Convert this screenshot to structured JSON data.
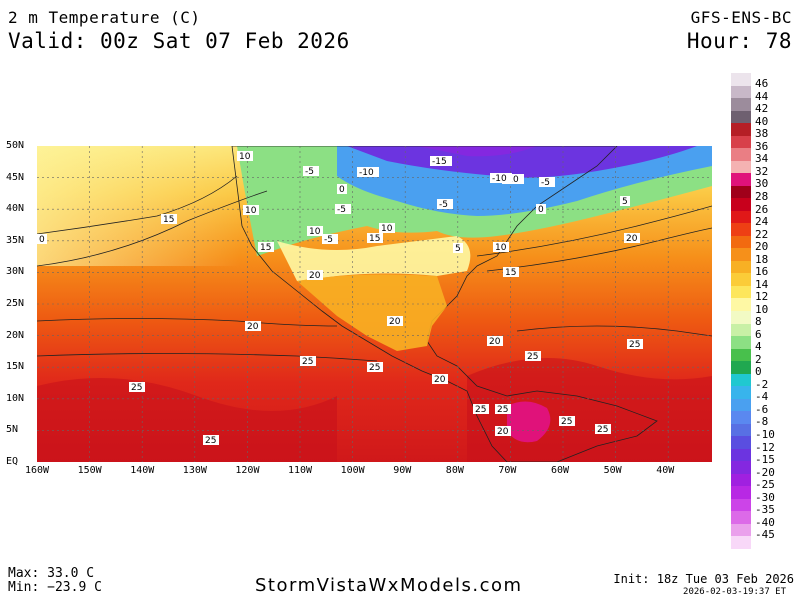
{
  "header": {
    "title": "2 m Temperature (C)",
    "valid": "Valid: 00z Sat 07 Feb 2026",
    "model": "GFS-ENS-BC",
    "hour": "Hour: 78"
  },
  "axes": {
    "lat_labels": [
      "50N",
      "45N",
      "40N",
      "35N",
      "30N",
      "25N",
      "20N",
      "15N",
      "10N",
      "5N",
      "EQ"
    ],
    "lon_labels": [
      "160W",
      "150W",
      "140W",
      "130W",
      "120W",
      "110W",
      "100W",
      "90W",
      "80W",
      "70W",
      "60W",
      "50W",
      "40W"
    ]
  },
  "colorbar": {
    "levels": [
      "46",
      "44",
      "42",
      "40",
      "38",
      "36",
      "34",
      "32",
      "30",
      "28",
      "26",
      "24",
      "22",
      "20",
      "18",
      "16",
      "14",
      "12",
      "10",
      "8",
      "6",
      "4",
      "2",
      "0",
      "-2",
      "-4",
      "-6",
      "-8",
      "-10",
      "-12",
      "-15",
      "-20",
      "-25",
      "-30",
      "-35",
      "-40",
      "-45"
    ],
    "colors": [
      "#ece4ec",
      "#c8b8c8",
      "#9c8c9c",
      "#6e6070",
      "#b51f26",
      "#d8404a",
      "#ea7e84",
      "#f4b2b2",
      "#e0127a",
      "#a0001a",
      "#c8001c",
      "#e01818",
      "#ee3f14",
      "#f26a10",
      "#f6901a",
      "#f8b024",
      "#fbcc38",
      "#fde65c",
      "#fef8a4",
      "#f2fac4",
      "#c8f0a6",
      "#8ce084",
      "#48c04c",
      "#20a850",
      "#20c8d0",
      "#38b4ec",
      "#4aa0f0",
      "#5a88f0",
      "#5870e4",
      "#5a4ee0",
      "#6c34e0",
      "#8428e0",
      "#a020e0",
      "#b828e4",
      "#cc44e8",
      "#dc6ae8",
      "#eaa0ec",
      "#f8d8f8"
    ]
  },
  "contour_labels": [
    {
      "text": "-15"
    },
    {
      "text": "-10"
    },
    {
      "text": "-10"
    },
    {
      "text": "-5"
    },
    {
      "text": "-5"
    },
    {
      "text": "-5"
    },
    {
      "text": "0"
    },
    {
      "text": "0"
    },
    {
      "text": "0"
    },
    {
      "text": "5"
    },
    {
      "text": "5"
    },
    {
      "text": "5"
    },
    {
      "text": "-5"
    },
    {
      "text": "-5"
    },
    {
      "text": "10"
    },
    {
      "text": "10"
    },
    {
      "text": "10"
    },
    {
      "text": "10"
    },
    {
      "text": "10"
    },
    {
      "text": "15"
    },
    {
      "text": "15"
    },
    {
      "text": "15"
    },
    {
      "text": "15"
    },
    {
      "text": "20"
    },
    {
      "text": "20"
    },
    {
      "text": "20"
    },
    {
      "text": "20"
    },
    {
      "text": "20"
    },
    {
      "text": "20"
    },
    {
      "text": "20"
    },
    {
      "text": "25"
    },
    {
      "text": "25"
    },
    {
      "text": "25"
    },
    {
      "text": "25"
    },
    {
      "text": "25"
    },
    {
      "text": "25"
    },
    {
      "text": "25"
    },
    {
      "text": "25"
    },
    {
      "text": "25"
    },
    {
      "text": "25"
    },
    {
      "text": "-10"
    }
  ],
  "footer": {
    "max": "Max: 33.0 C",
    "min": "Min: −23.9 C",
    "site": "StormVistaWxModels.com",
    "init": "Init: 18z Tue 03 Feb 2026",
    "stamp": "2026-02-03-19:37 ET"
  }
}
